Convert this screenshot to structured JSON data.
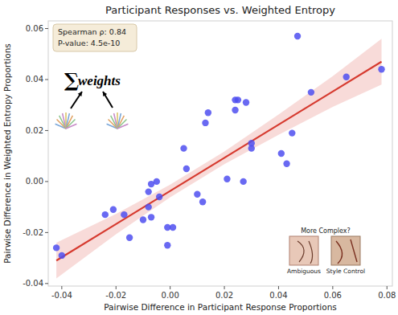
{
  "chart_data": {
    "type": "scatter",
    "title": "Participant Responses vs. Weighted Entropy",
    "x_label": "Pairwise Difference in Participant Response Proportions",
    "y_label": "Pairwise Difference in Weighted Entropy Proportions",
    "x": [
      -0.042,
      -0.04,
      -0.024,
      -0.021,
      -0.017,
      -0.015,
      -0.01,
      -0.008,
      -0.007,
      -0.008,
      -0.007,
      -0.005,
      -0.004,
      -0.001,
      -0.001,
      0.001,
      0.005,
      0.006,
      0.01,
      0.012,
      0.013,
      0.014,
      0.021,
      0.024,
      0.025,
      0.024,
      0.028,
      0.027,
      0.03,
      0.03,
      0.041,
      0.043,
      0.045,
      0.047,
      0.052,
      0.065,
      0.078
    ],
    "values": [
      -0.026,
      -0.029,
      -0.013,
      -0.011,
      -0.013,
      -0.022,
      -0.015,
      -0.01,
      -0.014,
      -0.004,
      -0.001,
      0.0,
      -0.006,
      -0.018,
      -0.025,
      -0.018,
      0.013,
      0.005,
      -0.005,
      -0.008,
      0.023,
      0.027,
      0.001,
      0.032,
      0.032,
      0.028,
      0.031,
      0.0,
      0.015,
      0.013,
      0.011,
      0.007,
      0.019,
      0.057,
      0.035,
      0.041,
      0.044
    ],
    "color": "#4f4ff0",
    "marker": "circle",
    "regression": {
      "color": "#d63a2f",
      "x": [
        -0.042,
        -0.02,
        0,
        0.02,
        0.04,
        0.06,
        0.078
      ],
      "y": [
        -0.031,
        -0.0167,
        -0.0037,
        0.0093,
        0.0223,
        0.0353,
        0.047
      ],
      "lower": [
        -0.038,
        -0.0207,
        -0.0062,
        0.0068,
        0.0183,
        0.0293,
        0.038
      ],
      "upper": [
        -0.024,
        -0.0127,
        -0.0012,
        0.0118,
        0.0263,
        0.0413,
        0.056
      ]
    },
    "xlim": [
      -0.045,
      0.082
    ],
    "ylim": [
      -0.041,
      0.063
    ],
    "xticks": [
      -0.04,
      -0.02,
      {
        "value": 0,
        "label": "0.00"
      },
      0.02,
      0.04,
      0.06,
      0.08
    ],
    "yticks": [
      -0.04,
      -0.02,
      {
        "value": 0,
        "label": "0.00"
      },
      0.02,
      0.04,
      0.06
    ],
    "grid": false,
    "annotations": [
      "Spearman ρ: 0.84",
      "P-value: 4.5e-10"
    ],
    "sum_symbol": "∑",
    "sum_label": "weights",
    "inset_question": "More Complex?",
    "inset_labels": [
      "Ambiguous",
      "Style Control"
    ]
  }
}
